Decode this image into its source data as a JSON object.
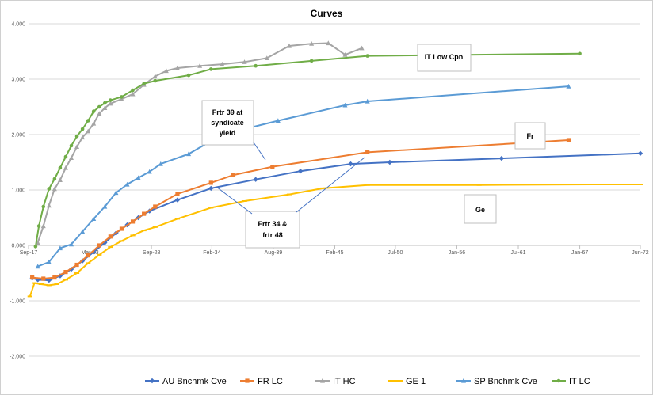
{
  "chart_data": {
    "type": "line",
    "title": "Curves",
    "ylim": [
      -2,
      4
    ],
    "y_ticks": [
      "4.000",
      "3.000",
      "2.000",
      "1.000",
      "0.000",
      "-1.000",
      "-2.000"
    ],
    "y_tick_values": [
      4,
      3,
      2,
      1,
      0,
      -1,
      -2
    ],
    "x_tick_labels": [
      "Sep-17",
      "Mar-23",
      "Sep-28",
      "Feb-34",
      "Aug-39",
      "Feb-45",
      "Jul-50",
      "Jan-56",
      "Jul-61",
      "Jan-67",
      "Jun-72"
    ],
    "x_tick_values": [
      2017.67,
      2023.17,
      2028.67,
      2034.08,
      2039.58,
      2045.08,
      2050.5,
      2056.0,
      2061.5,
      2067.0,
      2072.42
    ],
    "xlim": [
      2017.67,
      2072.42
    ],
    "grid": "horizontal",
    "legend_position": "bottom",
    "series": [
      {
        "name": "AU Bnchmk Cve",
        "color": "#4472C4",
        "marker": "diamond",
        "x": [
          2018.0,
          2018.5,
          2019.5,
          2020.5,
          2021.5,
          2022.5,
          2023.5,
          2024.5,
          2025.5,
          2026.5,
          2027.5,
          2028.5,
          2031,
          2034,
          2038,
          2042,
          2046.5,
          2050,
          2060,
          2072.42
        ],
        "y": [
          -0.59,
          -0.62,
          -0.63,
          -0.55,
          -0.43,
          -0.28,
          -0.12,
          0.05,
          0.22,
          0.37,
          0.5,
          0.62,
          0.82,
          1.03,
          1.19,
          1.34,
          1.47,
          1.5,
          1.57,
          1.66
        ]
      },
      {
        "name": "FR LC",
        "color": "#ED7D31",
        "marker": "square",
        "x": [
          2018.0,
          2019.0,
          2020.0,
          2021.0,
          2022.0,
          2023.0,
          2024.0,
          2025.0,
          2026.0,
          2027.0,
          2028.0,
          2029.0,
          2031.0,
          2034.0,
          2036.0,
          2039.5,
          2048.0,
          2066.0
        ],
        "y": [
          -0.58,
          -0.6,
          -0.58,
          -0.48,
          -0.35,
          -0.18,
          0.0,
          0.16,
          0.3,
          0.43,
          0.57,
          0.7,
          0.93,
          1.13,
          1.27,
          1.42,
          1.68,
          1.9
        ]
      },
      {
        "name": "IT HC",
        "color": "#A5A5A5",
        "marker": "triangle",
        "x": [
          2018.5,
          2019,
          2019.5,
          2020,
          2020.5,
          2021,
          2021.5,
          2022,
          2022.5,
          2023,
          2023.5,
          2024,
          2024.5,
          2025,
          2026,
          2027,
          2028,
          2029,
          2030,
          2031,
          2033,
          2035,
          2037,
          2039,
          2041,
          2043,
          2044.5,
          2046,
          2047.5
        ],
        "y": [
          0.05,
          0.35,
          0.72,
          1.02,
          1.18,
          1.4,
          1.58,
          1.78,
          1.95,
          2.06,
          2.2,
          2.38,
          2.48,
          2.56,
          2.64,
          2.73,
          2.9,
          3.05,
          3.15,
          3.2,
          3.24,
          3.27,
          3.31,
          3.38,
          3.6,
          3.64,
          3.65,
          3.44,
          3.56
        ]
      },
      {
        "name": "GE 1",
        "color": "#FFC000",
        "marker": "dash",
        "x": [
          2017.8,
          2018.2,
          2018.8,
          2019.5,
          2020.2,
          2021,
          2022,
          2023,
          2024,
          2025,
          2026,
          2027,
          2028,
          2029,
          2031,
          2034,
          2037,
          2041,
          2044,
          2048,
          2058,
          2068,
          2072.42
        ],
        "y": [
          -0.92,
          -0.68,
          -0.7,
          -0.72,
          -0.7,
          -0.62,
          -0.5,
          -0.32,
          -0.17,
          -0.03,
          0.08,
          0.18,
          0.27,
          0.33,
          0.48,
          0.68,
          0.8,
          0.92,
          1.03,
          1.09,
          1.09,
          1.1,
          1.1
        ]
      },
      {
        "name": "SP Bnchmk Cve",
        "color": "#5B9BD5",
        "marker": "triangle",
        "x": [
          2018.5,
          2019.5,
          2020.5,
          2021.5,
          2022.5,
          2023.5,
          2024.5,
          2025.5,
          2026.5,
          2027.5,
          2028.5,
          2029.5,
          2032,
          2035,
          2040,
          2046,
          2048,
          2066
        ],
        "y": [
          -0.38,
          -0.3,
          -0.05,
          0.02,
          0.25,
          0.48,
          0.7,
          0.95,
          1.1,
          1.22,
          1.33,
          1.47,
          1.65,
          2.0,
          2.25,
          2.53,
          2.6,
          2.87
        ]
      },
      {
        "name": "IT LC",
        "color": "#70AD47",
        "marker": "circle",
        "x": [
          2018.3,
          2018.6,
          2019.0,
          2019.5,
          2020.0,
          2020.5,
          2021.0,
          2021.5,
          2022.0,
          2022.5,
          2023.0,
          2023.5,
          2024.0,
          2024.5,
          2025.0,
          2026.0,
          2027.0,
          2028.0,
          2029.0,
          2032.0,
          2034.0,
          2038.0,
          2043.0,
          2048.0,
          2067.0
        ],
        "y": [
          -0.02,
          0.35,
          0.7,
          1.02,
          1.2,
          1.4,
          1.6,
          1.8,
          1.97,
          2.1,
          2.25,
          2.42,
          2.5,
          2.57,
          2.62,
          2.68,
          2.8,
          2.92,
          2.97,
          3.07,
          3.18,
          3.24,
          3.33,
          3.42,
          3.46
        ]
      }
    ],
    "annotations": [
      {
        "lines": [
          "IT Low Cpn"
        ]
      },
      {
        "lines": [
          "Frtr 39 at",
          "syndicate",
          "yield"
        ]
      },
      {
        "lines": [
          "Fr"
        ]
      },
      {
        "lines": [
          "Frtr 34 &",
          "frtr 48"
        ]
      },
      {
        "lines": [
          "Ge"
        ]
      }
    ]
  }
}
